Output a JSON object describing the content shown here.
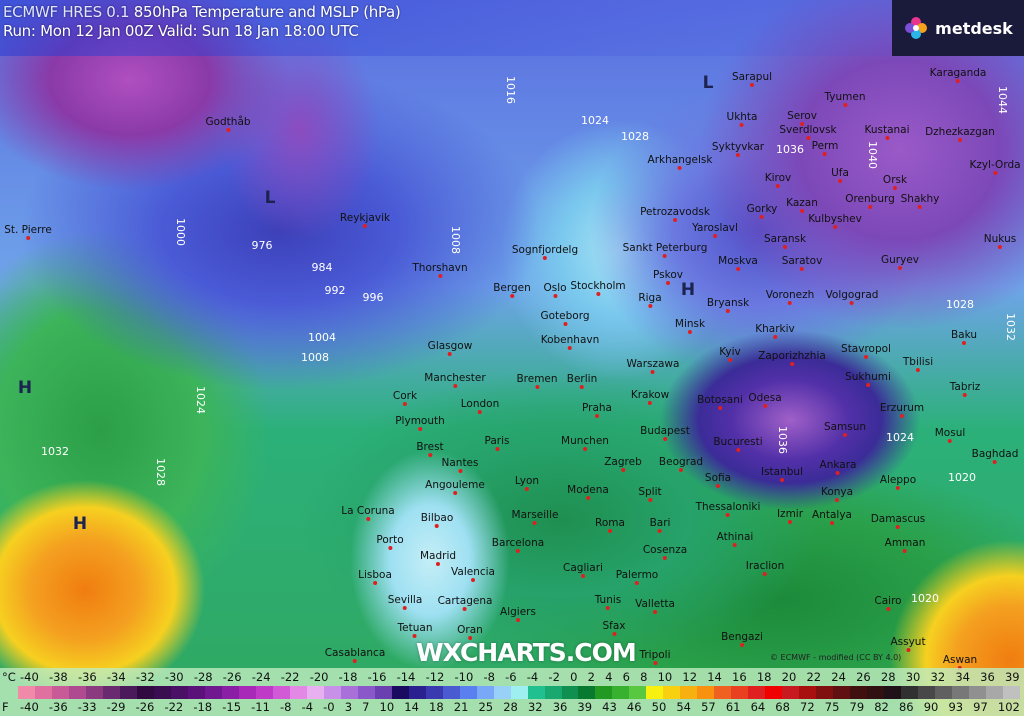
{
  "header": {
    "model": "ECMWF HRES 0.1",
    "product": "850hPa Temperature and MSLP (hPa)",
    "run_line": "Run: Mon 12 Jan 00Z Valid: Sun 18 Jan 18:00 UTC"
  },
  "logo": {
    "text": "metdesk",
    "icon": "metdesk-flower-icon"
  },
  "watermark": "WXCHARTS.COM",
  "credit": "© ECMWF - modified (CC BY 4.0)",
  "cities": [
    "Godthåb",
    "Reykjavik",
    "St. Pierre",
    "Thorshavn",
    "Sognfjordelg",
    "Bergen",
    "Oslo",
    "Stockholm",
    "Goteborg",
    "Kobenhavn",
    "Glasgow",
    "Manchester",
    "Cork",
    "London",
    "Plymouth",
    "Brest",
    "Paris",
    "Nantes",
    "Angouleme",
    "Lyon",
    "Bremen",
    "Berlin",
    "Praha",
    "Munchen",
    "Modena",
    "La Coruna",
    "Bilbao",
    "Marseille",
    "Roma",
    "Porto",
    "Barcelona",
    "Madrid",
    "Lisboa",
    "Valencia",
    "Cagliari",
    "Sevilla",
    "Cartagena",
    "Algiers",
    "Tunis",
    "Tetuan",
    "Oran",
    "Casablanca",
    "Sfax",
    "Tripoli",
    "Bengazi",
    "Valletta",
    "Palermo",
    "Cosenza",
    "Bari",
    "Split",
    "Zagreb",
    "Beograd",
    "Budapest",
    "Krakow",
    "Warszawa",
    "Minsk",
    "Kyiv",
    "Riga",
    "Pskov",
    "Sankt Peterburg",
    "Petrozavodsk",
    "Arkhangelsk",
    "Moskva",
    "Yaroslavl",
    "Gorky",
    "Kirov",
    "Kazan",
    "Kulbyshev",
    "Saransk",
    "Saratov",
    "Voronezh",
    "Bryansk",
    "Volgograd",
    "Kharkiv",
    "Zaporizhzhia",
    "Stavropol",
    "Sukhumi",
    "Tbilisi",
    "Baku",
    "Tabriz",
    "Erzurum",
    "Samsun",
    "Botosani",
    "Odesa",
    "Bucuresti",
    "Sofia",
    "Istanbul",
    "Ankara",
    "Konya",
    "Thessaloniki",
    "Izmir",
    "Antalya",
    "Athinai",
    "Iraclion",
    "Aleppo",
    "Damascus",
    "Amman",
    "Cairo",
    "Assyut",
    "Mosul",
    "Baghdad",
    "Sarapul",
    "Ukhta",
    "Serov",
    "Tyumen",
    "Sverdlovsk",
    "Kustanai",
    "Syktyvkar",
    "Perm",
    "Ufa",
    "Orsk",
    "Orenburg",
    "Shakhy",
    "Guryev",
    "Karaganda",
    "Dzhezkazgan",
    "Kzyl-Orda",
    "Nukus",
    "Aswan"
  ],
  "isobars": [
    "976",
    "984",
    "992",
    "996",
    "1004",
    "1008",
    "1000",
    "1008",
    "1016",
    "1024",
    "1028",
    "1036",
    "1040",
    "1044",
    "1032",
    "1028",
    "1032",
    "1028",
    "1036",
    "1024",
    "1020",
    "1020",
    "1024"
  ],
  "pressure_centers": [
    "L",
    "L",
    "H",
    "H",
    "H"
  ],
  "legend": {
    "celsius_unit": "°C",
    "fahrenheit_unit": "F",
    "celsius": [
      "-40",
      "-38",
      "-36",
      "-34",
      "-32",
      "-30",
      "-28",
      "-26",
      "-24",
      "-22",
      "-20",
      "-18",
      "-16",
      "-14",
      "-12",
      "-10",
      "-8",
      "-6",
      "-4",
      "-2",
      "0",
      "2",
      "4",
      "6",
      "8",
      "10",
      "12",
      "14",
      "16",
      "18",
      "20",
      "22",
      "24",
      "26",
      "28",
      "30",
      "32",
      "34",
      "36",
      "39"
    ],
    "fahrenheit": [
      "-40",
      "-36",
      "-33",
      "-29",
      "-26",
      "-22",
      "-18",
      "-15",
      "-11",
      "-8",
      "-4",
      "-0",
      "3",
      "7",
      "10",
      "14",
      "18",
      "21",
      "25",
      "28",
      "32",
      "36",
      "39",
      "43",
      "46",
      "50",
      "54",
      "57",
      "61",
      "64",
      "68",
      "72",
      "75",
      "79",
      "82",
      "86",
      "90",
      "93",
      "97",
      "102"
    ],
    "colors": [
      "#f08aa8",
      "#e070a0",
      "#c85a98",
      "#b04a90",
      "#8c3a80",
      "#6a2a70",
      "#4a1a5a",
      "#300a40",
      "#3a0c50",
      "#4a1066",
      "#5a127a",
      "#701890",
      "#8a1ea4",
      "#a828b8",
      "#c03ac8",
      "#d25ad6",
      "#e488e6",
      "#e8b0f0",
      "#c890e8",
      "#a870d8",
      "#8a58c8",
      "#6a40b0",
      "#1a0a60",
      "#2a2090",
      "#3a3ab0",
      "#4a5ad0",
      "#5a80f0",
      "#7aa8f8",
      "#98d0f8",
      "#9ef0f0",
      "#20c090",
      "#18a870",
      "#109050",
      "#087a30",
      "#229a22",
      "#38b030",
      "#58c840",
      "#f8f010",
      "#f8d010",
      "#f8b010",
      "#f89010",
      "#f06020",
      "#e84020",
      "#e02020",
      "#f00000",
      "#c81820",
      "#a81010",
      "#801010",
      "#601010",
      "#401010",
      "#301010",
      "#201018",
      "#303030",
      "#484848",
      "#606060",
      "#787878",
      "#909090",
      "#a8a8a8",
      "#c0c0c0"
    ]
  }
}
